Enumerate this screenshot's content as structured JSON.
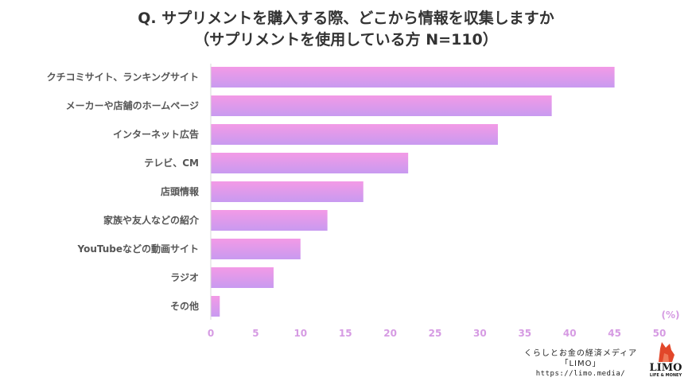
{
  "title": {
    "line1": "Q. サプリメントを購入する際、どこから情報を収集しますか",
    "line2": "（サプリメントを使用している方 N=110）"
  },
  "chart_data": {
    "type": "bar",
    "orientation": "horizontal",
    "categories": [
      "クチコミサイト、ランキングサイト",
      "メーカーや店舗のホームページ",
      "インターネット広告",
      "テレビ、CM",
      "店頭情報",
      "家族や友人などの紹介",
      "YouTubeなどの動画サイト",
      "ラジオ",
      "その他"
    ],
    "values": [
      45,
      38,
      32,
      22,
      17,
      13,
      10,
      7,
      1
    ],
    "xlim": [
      0,
      50
    ],
    "xticks": [
      0,
      5,
      10,
      15,
      20,
      25,
      30,
      35,
      40,
      45,
      50
    ],
    "unit_label": "(%)",
    "grid": false,
    "colors": {
      "bar_top": "#f39ae6",
      "bar_bottom": "#c89af0",
      "tick_label": "#d69be3",
      "axis": "#d9d9d9"
    }
  },
  "credit": {
    "line1": "くらしとお金の経済メディア",
    "line2": "「LIMO」",
    "url": "https://limo.media/"
  },
  "logo": {
    "name": "LIMO",
    "tagline": "LIFE & MONEY",
    "icon": "fox-icon",
    "color": "#e2472a"
  }
}
